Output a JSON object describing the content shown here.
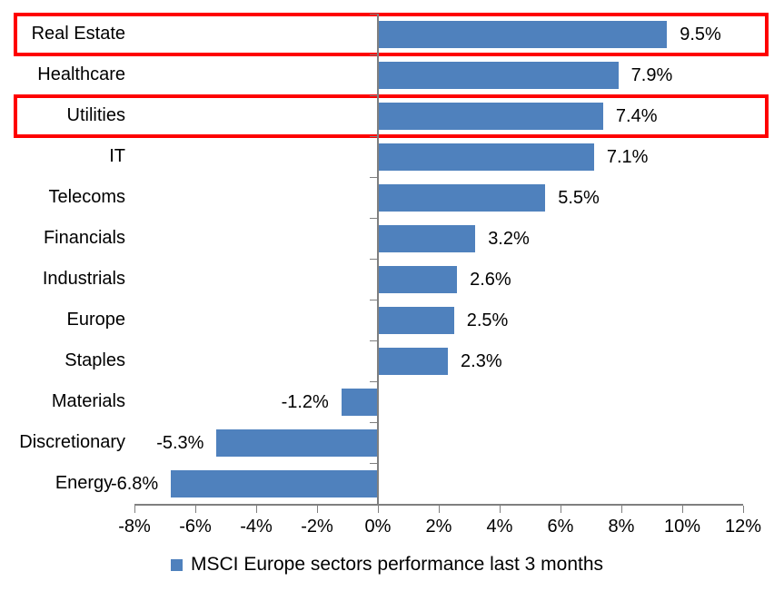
{
  "chart_data": {
    "type": "bar",
    "orientation": "horizontal",
    "legend": "MSCI Europe sectors performance last 3 months",
    "legend_position": "bottom",
    "categories": [
      "Real Estate",
      "Healthcare",
      "Utilities",
      "IT",
      "Telecoms",
      "Financials",
      "Industrials",
      "Europe",
      "Staples",
      "Materials",
      "Discretionary",
      "Energy"
    ],
    "values": [
      9.5,
      7.9,
      7.4,
      7.1,
      5.5,
      3.2,
      2.6,
      2.5,
      2.3,
      -1.2,
      -5.3,
      -6.8
    ],
    "data_labels": [
      "9.5%",
      "7.9%",
      "7.4%",
      "7.1%",
      "5.5%",
      "3.2%",
      "2.6%",
      "2.5%",
      "2.3%",
      "-1.2%",
      "-5.3%",
      "-6.8%"
    ],
    "x_tick_labels": [
      "-8%",
      "-6%",
      "-4%",
      "-2%",
      "0%",
      "2%",
      "4%",
      "6%",
      "8%",
      "10%",
      "12%"
    ],
    "x_tick_values": [
      -8,
      -6,
      -4,
      -2,
      0,
      2,
      4,
      6,
      8,
      10,
      12
    ],
    "xlim": [
      -8,
      12
    ],
    "grid": false,
    "bar_color": "#4F81BD",
    "axis_color": "#7F7F7F",
    "highlighted_categories": [
      "Real Estate",
      "Utilities"
    ],
    "highlight_color": "#FE0000"
  }
}
